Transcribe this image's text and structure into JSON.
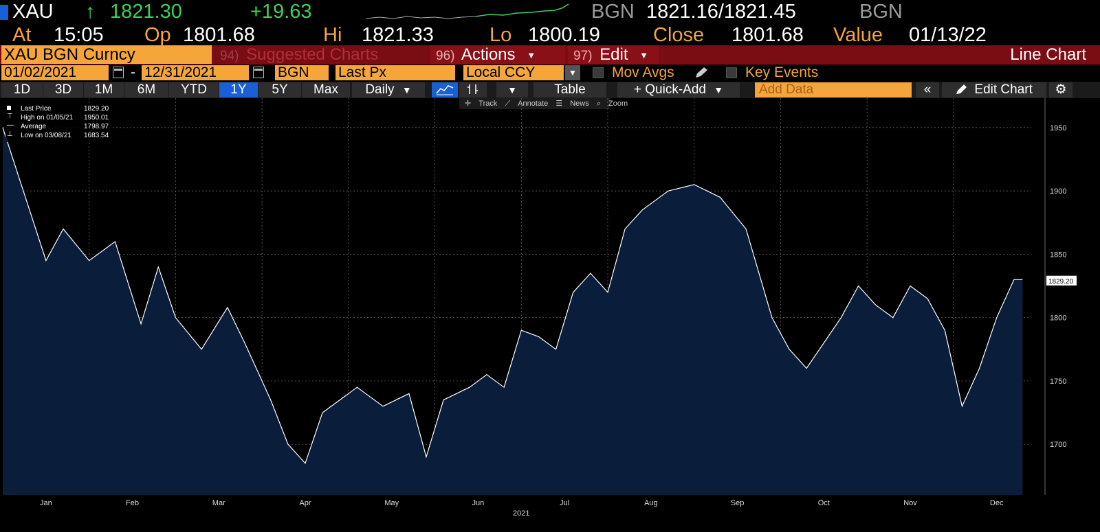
{
  "header": {
    "ticker": "XAU",
    "last_price": "1821.30",
    "change": "+19.63",
    "bid_source": "BGN",
    "bid_ask": "1821.16/1821.45",
    "ask_source": "BGN",
    "at_label": "At",
    "at_time": "15:05",
    "op_label": "Op",
    "op_value": "1801.68",
    "hi_label": "Hi",
    "hi_value": "1821.33",
    "lo_label": "Lo",
    "lo_value": "1800.19",
    "close_label": "Close",
    "close_value": "1801.68",
    "value_label": "Value",
    "value_date": "01/13/22"
  },
  "menubar": {
    "security": "XAU BGN Curncy",
    "suggested_num": "94)",
    "suggested_label": "Suggested Charts",
    "actions_num": "96)",
    "actions_label": "Actions",
    "edit_num": "97)",
    "edit_label": "Edit",
    "chart_type": "Line Chart"
  },
  "settings": {
    "start_date": "01/02/2021",
    "dash": "-",
    "end_date": "12/31/2021",
    "source": "BGN",
    "field": "Last Px",
    "currency": "Local CCY",
    "mov_avgs": "Mov Avgs",
    "key_events": "Key Events"
  },
  "toolbar": {
    "ranges": [
      "1D",
      "3D",
      "1M",
      "6M",
      "YTD",
      "1Y",
      "5Y",
      "Max"
    ],
    "selected_range": "1Y",
    "frequency": "Daily",
    "table": "Table",
    "quick_add": "+ Quick-Add",
    "add_data_placeholder": "Add Data",
    "edit_chart": "Edit Chart"
  },
  "subbar": {
    "track": "Track",
    "annotate": "Annotate",
    "news": "News",
    "zoom": "Zoom"
  },
  "legend": [
    {
      "label": "Last Price",
      "value": "1829.20"
    },
    {
      "label": "High on 01/05/21",
      "value": "1950.01"
    },
    {
      "label": "Average",
      "value": "1798.97"
    },
    {
      "label": "Low on 03/08/21",
      "value": "1683.54"
    }
  ],
  "last_price_tag": "1829.20",
  "colors": {
    "accent_orange": "#f5a53a",
    "up_green": "#3cd25a",
    "menu_red": "#7a0c14",
    "selected_blue": "#1a5fd6",
    "area_fill": "#0a1e3c",
    "line": "#ffffff"
  },
  "chart_data": {
    "type": "area",
    "title": "",
    "xlabel": "2021",
    "ylabel": "",
    "ylim": [
      1660,
      1970
    ],
    "yticks": [
      1700,
      1750,
      1800,
      1850,
      1900,
      1950
    ],
    "months": [
      "Jan",
      "Feb",
      "Mar",
      "Apr",
      "May",
      "Jun",
      "Jul",
      "Aug",
      "Sep",
      "Oct",
      "Nov",
      "Dec"
    ],
    "year_label": "2021",
    "series": [
      {
        "x": [
          0,
          0.5,
          0.7,
          1.0,
          1.3,
          1.6,
          1.8,
          2.0,
          2.3,
          2.6,
          2.8,
          3.1,
          3.3,
          3.5,
          3.7,
          3.9,
          4.1,
          4.4,
          4.7,
          4.9,
          5.1,
          5.4,
          5.6,
          5.8,
          6.0,
          6.2,
          6.4,
          6.6,
          6.8,
          7.0,
          7.2,
          7.4,
          7.7,
          8.0,
          8.3,
          8.6,
          8.9,
          9.1,
          9.3,
          9.5,
          9.7,
          9.9,
          10.1,
          10.3,
          10.5,
          10.7,
          10.9,
          11.1,
          11.3,
          11.5,
          11.7,
          11.8
        ],
        "values": [
          1950,
          1845,
          1870,
          1845,
          1860,
          1795,
          1840,
          1800,
          1775,
          1808,
          1780,
          1735,
          1700,
          1685,
          1725,
          1735,
          1745,
          1730,
          1740,
          1690,
          1735,
          1745,
          1755,
          1745,
          1790,
          1785,
          1775,
          1820,
          1835,
          1820,
          1870,
          1885,
          1900,
          1905,
          1895,
          1870,
          1800,
          1775,
          1760,
          1780,
          1800,
          1825,
          1810,
          1800,
          1825,
          1815,
          1790,
          1730,
          1760,
          1800,
          1830,
          1830
        ]
      }
    ],
    "last_value": 1829.2
  }
}
